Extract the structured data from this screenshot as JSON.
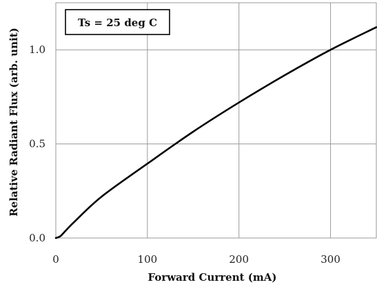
{
  "chart_data": {
    "type": "line",
    "xlabel": "Forward Current (mA)",
    "ylabel": "Relative Radiant Flux (arb. unit)",
    "xlim": [
      0,
      350
    ],
    "ylim": [
      0,
      1.25
    ],
    "xticks": [
      0,
      100,
      200,
      300
    ],
    "xtick_labels": [
      "0",
      "100",
      "200",
      "300"
    ],
    "yticks": [
      0,
      0.5,
      1.0
    ],
    "ytick_labels": [
      "0.0",
      "0.5",
      "1.0"
    ],
    "grid": true,
    "annotation": "Ts = 25 deg C",
    "series": [
      {
        "color": "#000000",
        "x": [
          0,
          5,
          10,
          20,
          50,
          100,
          150,
          200,
          250,
          300,
          350
        ],
        "y": [
          0,
          0.01,
          0.035,
          0.085,
          0.22,
          0.395,
          0.565,
          0.72,
          0.865,
          1.0,
          1.12
        ]
      }
    ]
  }
}
